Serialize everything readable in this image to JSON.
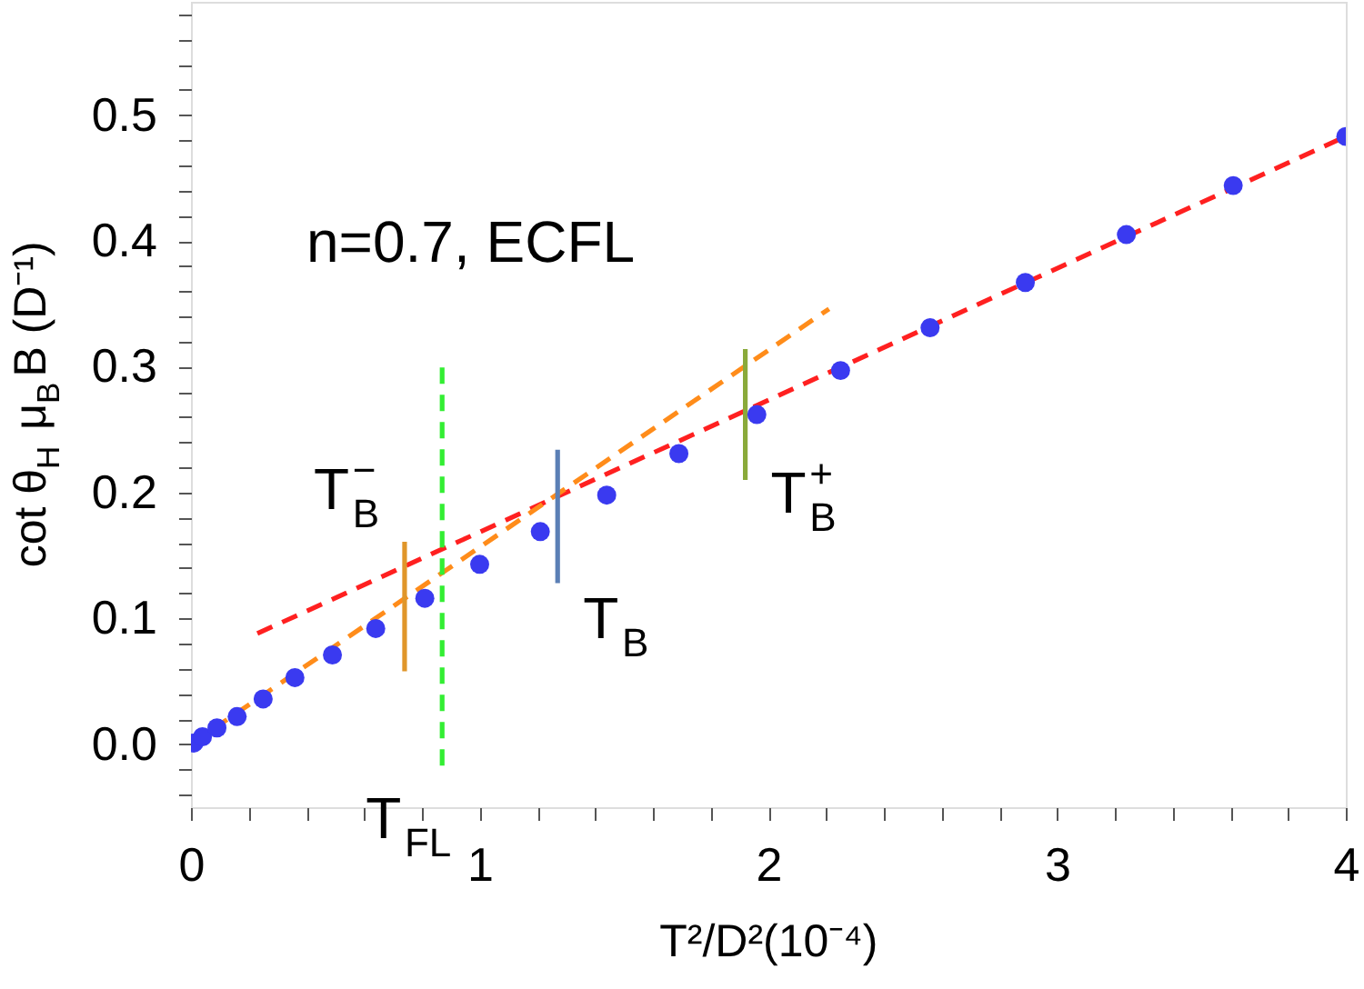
{
  "chart_data": {
    "type": "scatter",
    "xlabel": "T²/D²(10⁻⁴)",
    "ylabel": "cot θ$_{H}$ μ$_{B}$B (D⁻¹)",
    "xlim": [
      0,
      4
    ],
    "ylim": [
      -0.05,
      0.59
    ],
    "xticks": [
      0,
      1,
      2,
      3,
      4,
      {
        "value": 0.2,
        "label": null
      },
      {
        "value": 0.4,
        "label": null
      },
      {
        "value": 0.6,
        "label": null
      },
      {
        "value": 0.8,
        "label": null
      },
      {
        "value": 1.2,
        "label": null
      },
      {
        "value": 1.4,
        "label": null
      },
      {
        "value": 1.6,
        "label": null
      },
      {
        "value": 1.8,
        "label": null
      },
      {
        "value": 2.2,
        "label": null
      },
      {
        "value": 2.4,
        "label": null
      },
      {
        "value": 2.6,
        "label": null
      },
      {
        "value": 2.8,
        "label": null
      },
      {
        "value": 3.2,
        "label": null
      },
      {
        "value": 3.4,
        "label": null
      },
      {
        "value": 3.6,
        "label": null
      },
      {
        "value": 3.8,
        "label": null
      }
    ],
    "yticks": [
      {
        "value": 0,
        "label": "0.0"
      },
      0.1,
      0.2,
      0.3,
      0.4,
      0.5,
      {
        "value": -0.04,
        "label": null
      },
      {
        "value": -0.02,
        "label": null
      },
      {
        "value": 0.02,
        "label": null
      },
      {
        "value": 0.04,
        "label": null
      },
      {
        "value": 0.06,
        "label": null
      },
      {
        "value": 0.08,
        "label": null
      },
      {
        "value": 0.12,
        "label": null
      },
      {
        "value": 0.14,
        "label": null
      },
      {
        "value": 0.16,
        "label": null
      },
      {
        "value": 0.18,
        "label": null
      },
      {
        "value": 0.22,
        "label": null
      },
      {
        "value": 0.24,
        "label": null
      },
      {
        "value": 0.26,
        "label": null
      },
      {
        "value": 0.28,
        "label": null
      },
      {
        "value": 0.32,
        "label": null
      },
      {
        "value": 0.34,
        "label": null
      },
      {
        "value": 0.36,
        "label": null
      },
      {
        "value": 0.38,
        "label": null
      },
      {
        "value": 0.42,
        "label": null
      },
      {
        "value": 0.44,
        "label": null
      },
      {
        "value": 0.46,
        "label": null
      },
      {
        "value": 0.48,
        "label": null
      },
      {
        "value": 0.52,
        "label": null
      },
      {
        "value": 0.54,
        "label": null
      },
      {
        "value": 0.56,
        "label": null
      },
      {
        "value": 0.58,
        "label": null
      }
    ],
    "grid": false,
    "series": [
      {
        "type": "line",
        "color": "#ff2020",
        "line_style": "dashed",
        "marker": "none",
        "x": [
          0.23,
          4.0
        ],
        "values": [
          0.088,
          0.483
        ]
      },
      {
        "type": "line",
        "color": "#ff8c1a",
        "line_style": "dashed",
        "marker": "none",
        "x": [
          0.0,
          2.21
        ],
        "values": [
          0.0,
          0.346
        ]
      },
      {
        "type": "line",
        "color": "#33ee33",
        "line_style": "dashed",
        "marker": "none",
        "x": [
          0.87,
          0.87
        ],
        "values": [
          -0.017,
          0.303
        ]
      },
      {
        "type": "line",
        "color": "#e0962a",
        "line_style": "solid",
        "marker": "none",
        "x": [
          0.74,
          0.74
        ],
        "values": [
          0.058,
          0.161
        ]
      },
      {
        "type": "line",
        "color": "#5b7fb5",
        "line_style": "solid",
        "marker": "none",
        "x": [
          1.27,
          1.27
        ],
        "values": [
          0.128,
          0.234
        ]
      },
      {
        "type": "line",
        "color": "#8aaa3a",
        "line_style": "solid",
        "marker": "none",
        "x": [
          1.92,
          1.92
        ],
        "values": [
          0.21,
          0.314
        ]
      },
      {
        "color": "#3a3af0",
        "marker": "circle",
        "x": [
          0.01,
          0.04,
          0.09,
          0.16,
          0.25,
          0.36,
          0.49,
          0.64,
          0.81,
          1.0,
          1.21,
          1.44,
          1.69,
          1.96,
          2.25,
          2.56,
          2.89,
          3.24,
          3.61,
          4.0
        ],
        "values": [
          0.001,
          0.006,
          0.013,
          0.022,
          0.036,
          0.053,
          0.071,
          0.092,
          0.116,
          0.143,
          0.169,
          0.198,
          0.231,
          0.262,
          0.297,
          0.331,
          0.367,
          0.405,
          0.444,
          0.483
        ]
      }
    ],
    "annotations": [
      "n=0.7, ECFL",
      {
        "text": "T$_{B}$$^{−}$",
        "x": 0.74,
        "y": 0.161
      },
      {
        "text": "T$_{B}$",
        "x": 1.27,
        "y": 0.128
      },
      {
        "text": "T$_{B}$$^{+}$",
        "x": 1.92,
        "y": 0.21
      },
      {
        "text": "T$_{FL}$",
        "x": 0.87,
        "y": -0.017
      }
    ]
  }
}
